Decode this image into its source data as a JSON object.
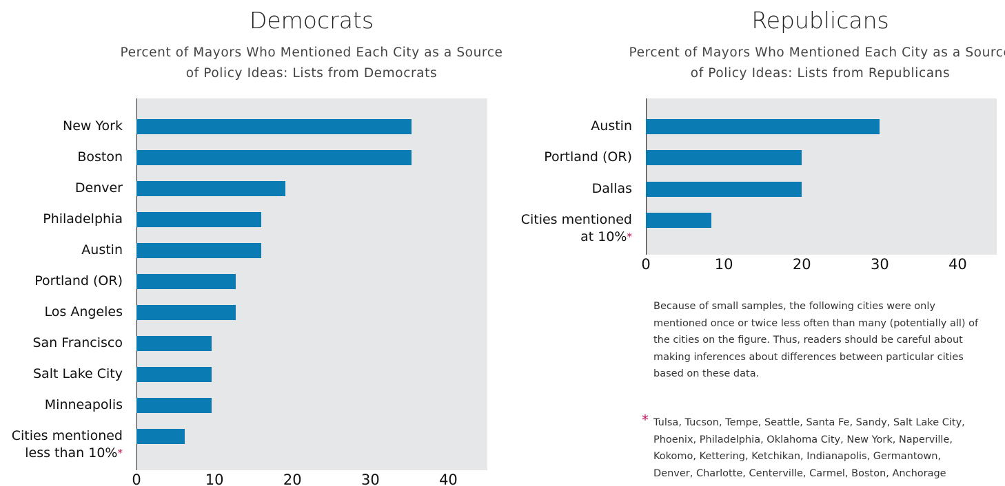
{
  "chart_data": [
    {
      "type": "bar",
      "orientation": "horizontal",
      "title": "Democrats",
      "subtitle": "Percent of Mayors Who Mentioned Each City as a Source of Policy Ideas: Lists from Democrats",
      "categories": [
        "New York",
        "Boston",
        "Denver",
        "Philadelphia",
        "Austin",
        "Portland (OR)",
        "Los Angeles",
        "San Francisco",
        "Salt Lake City",
        "Minneapolis",
        "Cities mentioned less than 10%"
      ],
      "category_markers": [
        null,
        null,
        null,
        null,
        null,
        null,
        null,
        null,
        null,
        null,
        "*"
      ],
      "values": [
        35.3,
        35.3,
        19.1,
        16,
        16,
        12.7,
        12.7,
        9.6,
        9.6,
        9.6,
        6.2
      ],
      "color": "#0b7cb3",
      "xlim": [
        0,
        45
      ],
      "xticks": [
        0,
        10,
        20,
        30,
        40
      ],
      "background": "#e6e7e9"
    },
    {
      "type": "bar",
      "orientation": "horizontal",
      "title": "Republicans",
      "subtitle": "Percent of Mayors Who Mentioned Each City as a Source of Policy Ideas: Lists from Republicans",
      "categories": [
        "Austin",
        "Portland (OR)",
        "Dallas",
        "Cities mentioned at 10%"
      ],
      "category_markers": [
        null,
        null,
        null,
        "*"
      ],
      "values": [
        30,
        20,
        20,
        8.4
      ],
      "color": "#0b7cb3",
      "xlim": [
        0,
        45
      ],
      "xticks": [
        0,
        10,
        20,
        30,
        40
      ],
      "background": "#e6e7e9"
    }
  ],
  "notes": {
    "caveat": "Because of small samples, the following cities were only mentioned once or twice less often than many (potentially all) of the cities on the figure. Thus, readers should be careful about making inferences about differences between particular cities based on these data.",
    "footnote_marker": "*",
    "footnote": "Tulsa, Tucson, Tempe, Seattle, Santa Fe, Sandy, Salt Lake City, Phoenix, Philadelphia, Oklahoma City, New York, Naperville, Kokomo, Kettering, Ketchikan, Indianapolis, Germantown, Denver, Charlotte, Centerville, Carmel, Boston, Anchorage"
  }
}
